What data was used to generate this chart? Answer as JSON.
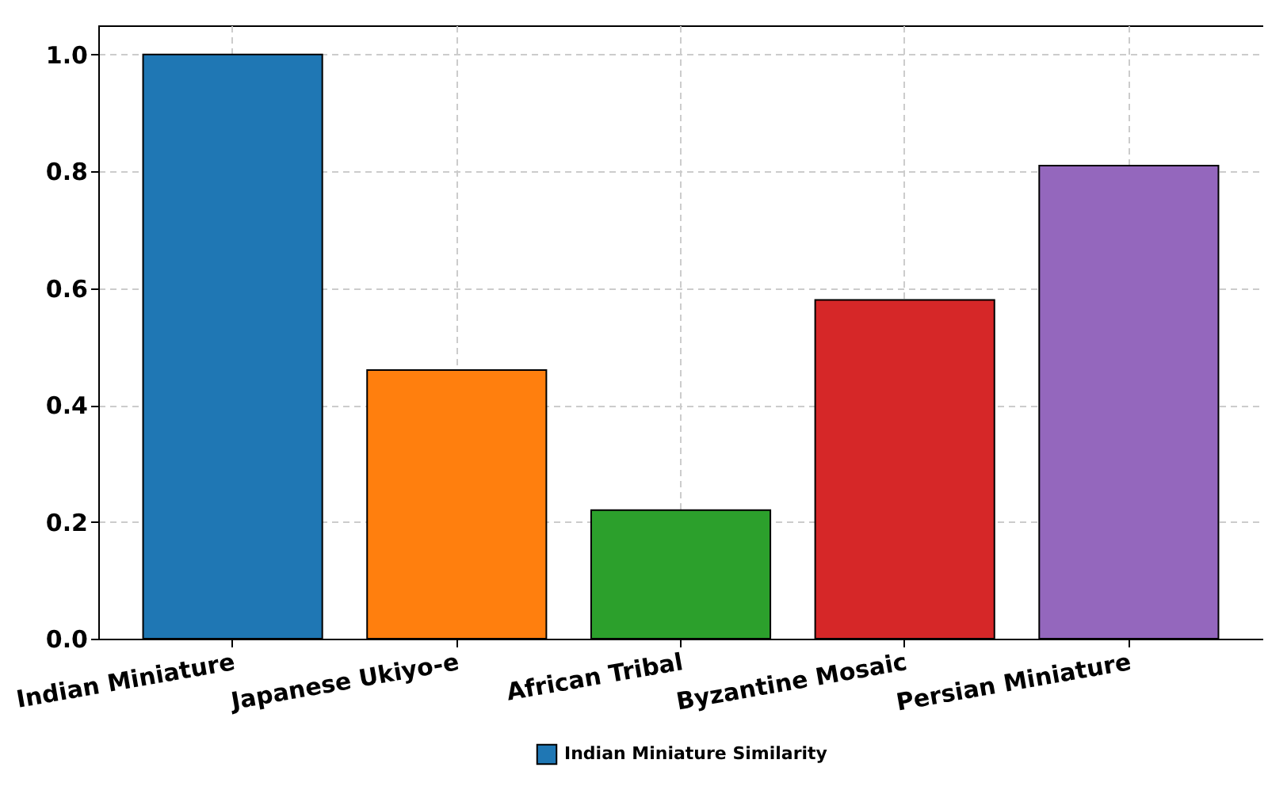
{
  "chart_data": {
    "type": "bar",
    "categories": [
      "Indian Miniature",
      "Japanese Ukiyo-e",
      "African Tribal",
      "Byzantine Mosaic",
      "Persian Miniature"
    ],
    "series": [
      {
        "name": "Indian Miniature Similarity",
        "color": "#1f77b4",
        "colors": [
          "#1f77b4",
          "#ff7f0e",
          "#2ca02c",
          "#d62728",
          "#9467bd"
        ],
        "values": [
          1.0,
          0.46,
          0.22,
          0.58,
          0.81
        ]
      }
    ],
    "ylim": [
      0,
      1.05
    ],
    "yticks": [
      {
        "value": 0,
        "label": "0.0"
      },
      {
        "value": 0.2,
        "label": "0.2"
      },
      {
        "value": 0.4,
        "label": "0.4"
      },
      {
        "value": 0.6,
        "label": "0.6"
      },
      {
        "value": 0.8,
        "label": "0.8"
      },
      {
        "value": 1.0,
        "label": "1.0"
      }
    ],
    "grid": true,
    "legend": "bottom"
  }
}
